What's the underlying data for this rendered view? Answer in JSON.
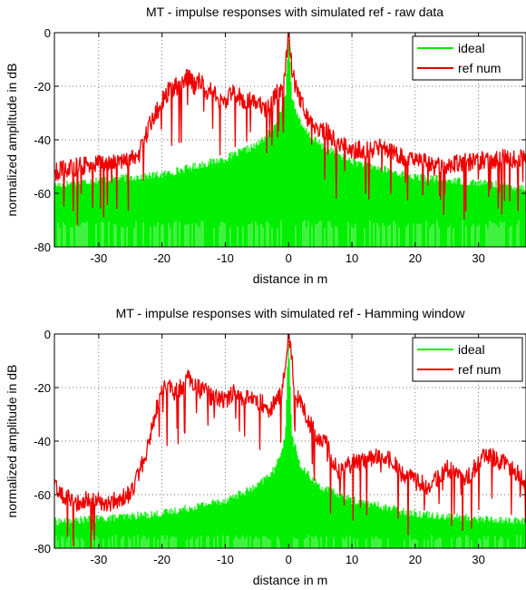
{
  "chart_data": [
    {
      "type": "line",
      "title": "MT - impulse responses with simulated ref - raw data",
      "xlabel": "distance in m",
      "ylabel": "normalized amplitude in dB",
      "xlim": [
        -37,
        37.5
      ],
      "ylim": [
        -80,
        0
      ],
      "xticks": [
        "-30",
        "-20",
        "-10",
        "0",
        "10",
        "20",
        "30"
      ],
      "xtick_values": [
        -30,
        -20,
        -10,
        0,
        10,
        20,
        30
      ],
      "yticks": [
        "0",
        "-20",
        "-40",
        "-60",
        "-80"
      ],
      "ytick_values": [
        0,
        -20,
        -40,
        -60,
        -80
      ],
      "grid": true,
      "legend_position": "top-right",
      "series": [
        {
          "name": "ideal",
          "color": "#00ee00",
          "envelope_x": [
            -37,
            -30,
            -20,
            -10,
            -5,
            -2,
            -0.5,
            0,
            0.5,
            2,
            5,
            10,
            20,
            30,
            37.5
          ],
          "envelope_y": [
            -57,
            -55,
            -53,
            -47,
            -42,
            -35,
            -24,
            0,
            -24,
            -35,
            -42,
            -48,
            -54,
            -56,
            -58
          ]
        },
        {
          "name": "ref num",
          "color": "#ee0000",
          "x": [
            -37,
            -33,
            -30,
            -26,
            -24,
            -23,
            -22,
            -21,
            -20,
            -19,
            -18,
            -17,
            -16,
            -15,
            -14,
            -13,
            -12,
            -11,
            -10,
            -9,
            -8,
            -7,
            -6,
            -5,
            -4,
            -3,
            -2,
            -1,
            -0.5,
            0,
            0.5,
            1,
            2,
            3,
            4,
            5,
            6,
            8,
            10,
            12,
            15,
            18,
            20,
            23,
            26,
            30,
            33,
            37.5
          ],
          "y": [
            -52,
            -50,
            -49,
            -48,
            -47,
            -42,
            -35,
            -30,
            -26,
            -22,
            -20,
            -20,
            -16,
            -20,
            -18,
            -22,
            -22,
            -25,
            -26,
            -23,
            -23,
            -26,
            -25,
            -26,
            -28,
            -28,
            -23,
            -20,
            -12,
            0,
            -12,
            -20,
            -26,
            -32,
            -35,
            -36,
            -37,
            -42,
            -44,
            -44,
            -43,
            -46,
            -47,
            -50,
            -49,
            -48,
            -47,
            -47
          ]
        }
      ]
    },
    {
      "type": "line",
      "title": "MT - impulse responses with simulated ref - Hamming window",
      "xlabel": "distance in m",
      "ylabel": "normalized amplitude in dB",
      "xlim": [
        -37,
        37.5
      ],
      "ylim": [
        -80,
        0
      ],
      "xticks": [
        "-30",
        "-20",
        "-10",
        "0",
        "10",
        "20",
        "30"
      ],
      "xtick_values": [
        -30,
        -20,
        -10,
        0,
        10,
        20,
        30
      ],
      "yticks": [
        "0",
        "-20",
        "-40",
        "-60",
        "-80"
      ],
      "ytick_values": [
        0,
        -20,
        -40,
        -60,
        -80
      ],
      "grid": true,
      "legend_position": "top-right",
      "series": [
        {
          "name": "ideal",
          "color": "#00ee00",
          "envelope_x": [
            -37,
            -30,
            -20,
            -10,
            -5,
            -2,
            -0.5,
            0,
            0.5,
            2,
            5,
            10,
            20,
            30,
            37.5
          ],
          "envelope_y": [
            -70,
            -69,
            -67,
            -62,
            -57,
            -50,
            -38,
            0,
            -38,
            -50,
            -57,
            -62,
            -67,
            -69,
            -70
          ]
        },
        {
          "name": "ref num",
          "color": "#ee0000",
          "x": [
            -37,
            -34,
            -31,
            -28,
            -25,
            -23,
            -22,
            -21,
            -20,
            -19,
            -18,
            -17,
            -16,
            -15,
            -14,
            -13,
            -12,
            -11,
            -10,
            -9,
            -8,
            -7,
            -6,
            -5,
            -4,
            -3,
            -2,
            -1,
            -0.5,
            0,
            0.5,
            1,
            2,
            3,
            4,
            5,
            6,
            7,
            8,
            10,
            12,
            15,
            18,
            20,
            22,
            25,
            28,
            31,
            34,
            37.5
          ],
          "y": [
            -57,
            -63,
            -62,
            -63,
            -60,
            -48,
            -40,
            -28,
            -21,
            -20,
            -22,
            -20,
            -16,
            -19,
            -21,
            -22,
            -24,
            -24,
            -25,
            -22,
            -22,
            -25,
            -23,
            -25,
            -26,
            -28,
            -25,
            -22,
            -10,
            0,
            -10,
            -22,
            -27,
            -32,
            -36,
            -40,
            -40,
            -48,
            -52,
            -48,
            -47,
            -45,
            -52,
            -55,
            -57,
            -50,
            -54,
            -45,
            -48,
            -55
          ]
        }
      ]
    }
  ]
}
